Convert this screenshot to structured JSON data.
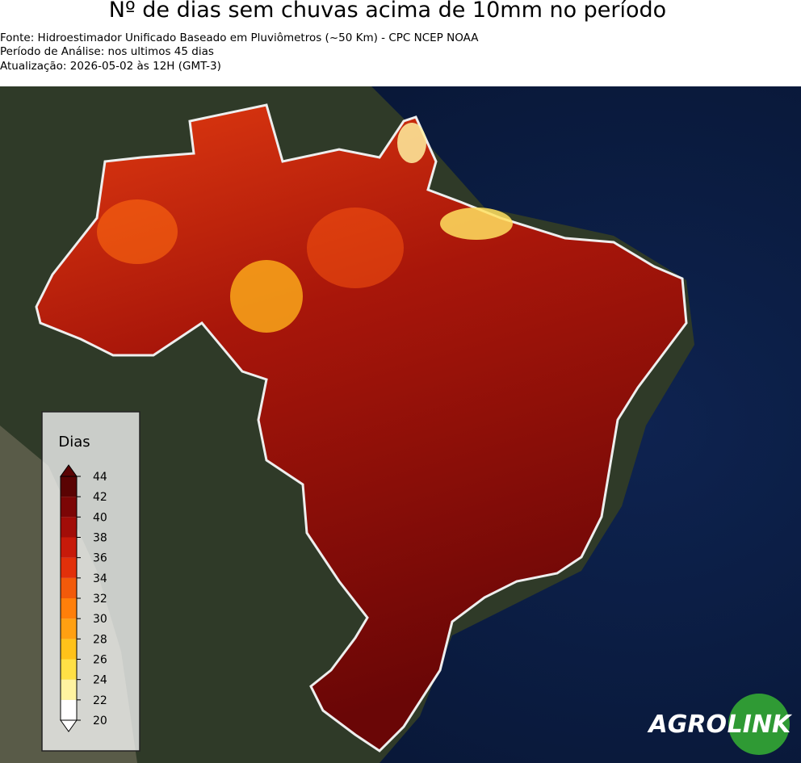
{
  "header": {
    "title": "Nº de dias sem chuvas acima de 10mm no período",
    "lines": [
      "Fonte: Hidroestimador Unificado Baseado em Pluviômetros (~50 Km) - CPC NCEP NOAA",
      "Período de Análise: nos ultimos 45 dias",
      "Atualização: 2026-05-02 às 12H (GMT-3)"
    ]
  },
  "legend": {
    "title": "Dias",
    "lim": [
      20,
      44
    ],
    "ticks": [
      20,
      22,
      24,
      26,
      28,
      30,
      32,
      34,
      36,
      38,
      40,
      42,
      44
    ],
    "colors": [
      "#ffffff",
      "#fff3a0",
      "#ffe046",
      "#ffc21a",
      "#ffa012",
      "#ff7f0a",
      "#f25a0a",
      "#e2300a",
      "#c71a0a",
      "#a20d08",
      "#7c0606",
      "#5a0303"
    ]
  },
  "logo": {
    "left": "AGRO",
    "right": "LINK"
  }
}
